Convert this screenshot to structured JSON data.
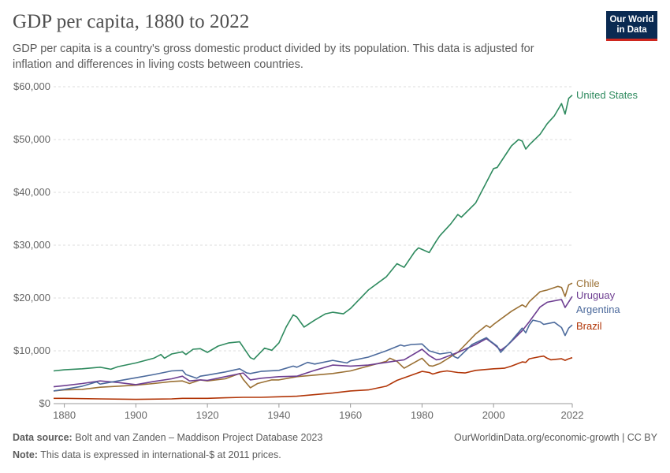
{
  "header": {
    "title": "GDP per capita, 1880 to 2022",
    "subtitle": "GDP per capita is a country's gross domestic product divided by its population. This data is adjusted for inflation and differences in living costs between countries."
  },
  "logo": {
    "line1": "Our World",
    "line2": "in Data",
    "bg_color": "#0a2a52",
    "accent_color": "#ce261e"
  },
  "footer": {
    "source_label": "Data source:",
    "source_text": "Bolt and van Zanden – Maddison Project Database 2023",
    "note_label": "Note:",
    "note_text": "This data is expressed in international-$ at 2011 prices.",
    "link": "OurWorldinData.org/economic-growth | CC BY"
  },
  "chart_data": {
    "type": "line",
    "title": "GDP per capita, 1880 to 2022",
    "xlim": [
      1877,
      2022
    ],
    "ylim": [
      0,
      60000
    ],
    "x_ticks": [
      1880,
      1900,
      1920,
      1940,
      1960,
      1980,
      2000,
      2022
    ],
    "y_ticks": [
      0,
      10000,
      20000,
      30000,
      40000,
      50000,
      60000
    ],
    "y_tick_labels": [
      "$0",
      "$10,000",
      "$20,000",
      "$30,000",
      "$40,000",
      "$50,000",
      "$60,000"
    ],
    "grid": "horizontal dashed",
    "legend": "inline labels at line ends",
    "series": [
      {
        "name": "United States",
        "color": "#2e8a5e",
        "points": [
          [
            1877,
            6200
          ],
          [
            1880,
            6400
          ],
          [
            1885,
            6600
          ],
          [
            1890,
            6900
          ],
          [
            1893,
            6500
          ],
          [
            1895,
            7000
          ],
          [
            1900,
            7700
          ],
          [
            1905,
            8600
          ],
          [
            1907,
            9300
          ],
          [
            1908,
            8600
          ],
          [
            1910,
            9400
          ],
          [
            1913,
            9800
          ],
          [
            1914,
            9300
          ],
          [
            1916,
            10300
          ],
          [
            1918,
            10400
          ],
          [
            1920,
            9700
          ],
          [
            1923,
            10900
          ],
          [
            1926,
            11500
          ],
          [
            1929,
            11700
          ],
          [
            1930,
            10700
          ],
          [
            1932,
            8700
          ],
          [
            1933,
            8400
          ],
          [
            1936,
            10500
          ],
          [
            1938,
            10100
          ],
          [
            1940,
            11500
          ],
          [
            1942,
            14500
          ],
          [
            1944,
            16800
          ],
          [
            1945,
            16400
          ],
          [
            1947,
            14500
          ],
          [
            1950,
            15800
          ],
          [
            1953,
            17000
          ],
          [
            1955,
            17300
          ],
          [
            1958,
            17000
          ],
          [
            1960,
            18000
          ],
          [
            1965,
            21500
          ],
          [
            1970,
            24000
          ],
          [
            1973,
            26500
          ],
          [
            1975,
            25800
          ],
          [
            1978,
            28800
          ],
          [
            1979,
            29500
          ],
          [
            1980,
            29200
          ],
          [
            1982,
            28600
          ],
          [
            1984,
            30800
          ],
          [
            1985,
            31800
          ],
          [
            1988,
            34000
          ],
          [
            1990,
            35800
          ],
          [
            1991,
            35300
          ],
          [
            1995,
            38000
          ],
          [
            2000,
            44500
          ],
          [
            2001,
            44700
          ],
          [
            2005,
            48800
          ],
          [
            2007,
            50000
          ],
          [
            2008,
            49700
          ],
          [
            2009,
            48200
          ],
          [
            2010,
            49000
          ],
          [
            2013,
            51000
          ],
          [
            2015,
            53000
          ],
          [
            2017,
            54500
          ],
          [
            2019,
            56800
          ],
          [
            2020,
            54800
          ],
          [
            2021,
            57800
          ],
          [
            2022,
            58400
          ]
        ]
      },
      {
        "name": "Chile",
        "color": "#9a7034",
        "points": [
          [
            1877,
            2400
          ],
          [
            1880,
            2600
          ],
          [
            1885,
            2700
          ],
          [
            1890,
            3100
          ],
          [
            1895,
            3300
          ],
          [
            1900,
            3500
          ],
          [
            1905,
            3800
          ],
          [
            1910,
            4200
          ],
          [
            1913,
            4300
          ],
          [
            1915,
            3800
          ],
          [
            1918,
            4500
          ],
          [
            1920,
            4300
          ],
          [
            1925,
            4700
          ],
          [
            1929,
            5700
          ],
          [
            1930,
            4600
          ],
          [
            1932,
            3000
          ],
          [
            1934,
            3800
          ],
          [
            1938,
            4500
          ],
          [
            1940,
            4500
          ],
          [
            1945,
            5100
          ],
          [
            1950,
            5400
          ],
          [
            1955,
            5700
          ],
          [
            1960,
            6200
          ],
          [
            1965,
            7100
          ],
          [
            1970,
            8000
          ],
          [
            1971,
            8600
          ],
          [
            1973,
            8000
          ],
          [
            1975,
            6700
          ],
          [
            1980,
            8600
          ],
          [
            1982,
            7200
          ],
          [
            1983,
            7100
          ],
          [
            1985,
            7600
          ],
          [
            1990,
            9700
          ],
          [
            1995,
            13200
          ],
          [
            1998,
            14800
          ],
          [
            1999,
            14400
          ],
          [
            2000,
            15000
          ],
          [
            2005,
            17500
          ],
          [
            2008,
            18700
          ],
          [
            2009,
            18300
          ],
          [
            2010,
            19300
          ],
          [
            2013,
            21200
          ],
          [
            2015,
            21500
          ],
          [
            2018,
            22200
          ],
          [
            2019,
            22000
          ],
          [
            2020,
            20300
          ],
          [
            2021,
            22500
          ],
          [
            2022,
            22800
          ]
        ]
      },
      {
        "name": "Uruguay",
        "color": "#6d3e91",
        "points": [
          [
            1877,
            3200
          ],
          [
            1880,
            3400
          ],
          [
            1885,
            3800
          ],
          [
            1890,
            4300
          ],
          [
            1895,
            4000
          ],
          [
            1900,
            3600
          ],
          [
            1905,
            4200
          ],
          [
            1910,
            4700
          ],
          [
            1913,
            5200
          ],
          [
            1915,
            4300
          ],
          [
            1918,
            4500
          ],
          [
            1920,
            4400
          ],
          [
            1925,
            5100
          ],
          [
            1930,
            5800
          ],
          [
            1932,
            4500
          ],
          [
            1935,
            4800
          ],
          [
            1940,
            5100
          ],
          [
            1945,
            5200
          ],
          [
            1950,
            6300
          ],
          [
            1955,
            7300
          ],
          [
            1960,
            7100
          ],
          [
            1965,
            7300
          ],
          [
            1970,
            7800
          ],
          [
            1975,
            8300
          ],
          [
            1980,
            10300
          ],
          [
            1982,
            9100
          ],
          [
            1984,
            8300
          ],
          [
            1985,
            8400
          ],
          [
            1990,
            9700
          ],
          [
            1995,
            11200
          ],
          [
            1998,
            12300
          ],
          [
            2000,
            11300
          ],
          [
            2002,
            10100
          ],
          [
            2004,
            11100
          ],
          [
            2008,
            13800
          ],
          [
            2010,
            15500
          ],
          [
            2013,
            18300
          ],
          [
            2015,
            19200
          ],
          [
            2018,
            19600
          ],
          [
            2019,
            19700
          ],
          [
            2020,
            18200
          ],
          [
            2022,
            20300
          ]
        ]
      },
      {
        "name": "Argentina",
        "color": "#4c6a9c",
        "points": [
          [
            1877,
            2400
          ],
          [
            1880,
            2700
          ],
          [
            1885,
            3300
          ],
          [
            1889,
            4100
          ],
          [
            1890,
            3700
          ],
          [
            1895,
            4300
          ],
          [
            1900,
            4900
          ],
          [
            1905,
            5500
          ],
          [
            1910,
            6200
          ],
          [
            1913,
            6300
          ],
          [
            1914,
            5500
          ],
          [
            1917,
            4800
          ],
          [
            1918,
            5200
          ],
          [
            1920,
            5400
          ],
          [
            1925,
            6000
          ],
          [
            1929,
            6600
          ],
          [
            1931,
            5800
          ],
          [
            1932,
            5700
          ],
          [
            1935,
            6100
          ],
          [
            1940,
            6300
          ],
          [
            1944,
            7100
          ],
          [
            1945,
            6900
          ],
          [
            1948,
            7800
          ],
          [
            1950,
            7500
          ],
          [
            1955,
            8200
          ],
          [
            1959,
            7700
          ],
          [
            1960,
            8100
          ],
          [
            1965,
            8800
          ],
          [
            1970,
            10000
          ],
          [
            1974,
            11100
          ],
          [
            1975,
            10900
          ],
          [
            1977,
            11200
          ],
          [
            1980,
            11300
          ],
          [
            1982,
            10000
          ],
          [
            1985,
            9400
          ],
          [
            1988,
            9700
          ],
          [
            1989,
            8900
          ],
          [
            1990,
            8600
          ],
          [
            1994,
            11200
          ],
          [
            1998,
            12500
          ],
          [
            1999,
            11900
          ],
          [
            2001,
            10900
          ],
          [
            2002,
            9700
          ],
          [
            2005,
            11900
          ],
          [
            2008,
            14300
          ],
          [
            2009,
            13400
          ],
          [
            2010,
            14900
          ],
          [
            2011,
            15800
          ],
          [
            2013,
            15500
          ],
          [
            2014,
            15000
          ],
          [
            2017,
            15400
          ],
          [
            2019,
            14400
          ],
          [
            2020,
            12900
          ],
          [
            2021,
            14300
          ],
          [
            2022,
            14900
          ]
        ]
      },
      {
        "name": "Brazil",
        "color": "#b13507",
        "points": [
          [
            1877,
            1000
          ],
          [
            1880,
            1000
          ],
          [
            1890,
            900
          ],
          [
            1900,
            800
          ],
          [
            1910,
            900
          ],
          [
            1913,
            1000
          ],
          [
            1920,
            1000
          ],
          [
            1925,
            1100
          ],
          [
            1930,
            1200
          ],
          [
            1935,
            1200
          ],
          [
            1940,
            1300
          ],
          [
            1945,
            1400
          ],
          [
            1950,
            1700
          ],
          [
            1955,
            2000
          ],
          [
            1960,
            2400
          ],
          [
            1965,
            2600
          ],
          [
            1970,
            3300
          ],
          [
            1973,
            4400
          ],
          [
            1975,
            4900
          ],
          [
            1980,
            6100
          ],
          [
            1982,
            5900
          ],
          [
            1983,
            5600
          ],
          [
            1985,
            6000
          ],
          [
            1987,
            6200
          ],
          [
            1990,
            5900
          ],
          [
            1992,
            5800
          ],
          [
            1995,
            6300
          ],
          [
            2000,
            6600
          ],
          [
            2003,
            6700
          ],
          [
            2005,
            7100
          ],
          [
            2008,
            7900
          ],
          [
            2009,
            7800
          ],
          [
            2010,
            8500
          ],
          [
            2013,
            8900
          ],
          [
            2014,
            9000
          ],
          [
            2015,
            8600
          ],
          [
            2016,
            8300
          ],
          [
            2019,
            8500
          ],
          [
            2020,
            8200
          ],
          [
            2021,
            8500
          ],
          [
            2022,
            8700
          ]
        ]
      }
    ]
  }
}
